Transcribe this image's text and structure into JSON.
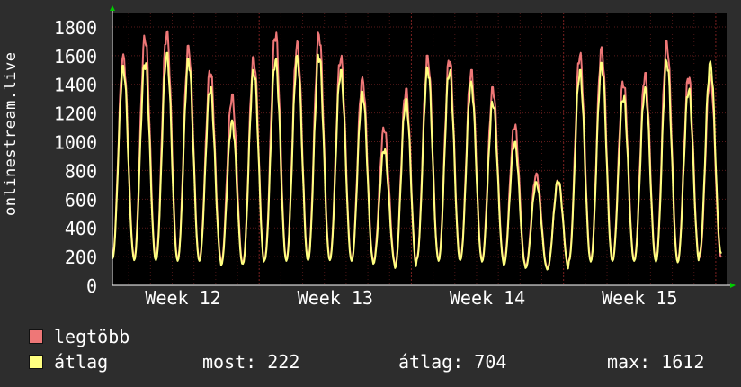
{
  "chart_data": {
    "type": "line",
    "ylabel": "onlinestream.live",
    "yticks": [
      0,
      200,
      400,
      600,
      800,
      1000,
      1200,
      1400,
      1600,
      1800
    ],
    "ylim": [
      0,
      1900
    ],
    "xlabels": [
      "Week 12",
      "Week 13",
      "Week 14",
      "Week 15"
    ],
    "days": 28,
    "grid": true,
    "series": [
      {
        "name": "legtöbb",
        "color": "#ee7777",
        "daily_peak": [
          1610,
          1740,
          1770,
          1670,
          1500,
          1330,
          1590,
          1760,
          1700,
          1760,
          1600,
          1450,
          1100,
          1370,
          1600,
          1580,
          1500,
          1380,
          1120,
          780,
          730,
          1620,
          1660,
          1420,
          1480,
          1700,
          1460,
          1470
        ],
        "daily_min": [
          200,
          185,
          190,
          180,
          185,
          150,
          160,
          185,
          180,
          185,
          185,
          180,
          160,
          130,
          190,
          180,
          185,
          175,
          150,
          130,
          120,
          180,
          175,
          180,
          180,
          175,
          170,
          195
        ]
      },
      {
        "name": "átlag",
        "color": "#ffff80",
        "daily_peak": [
          1530,
          1560,
          1620,
          1580,
          1380,
          1150,
          1500,
          1580,
          1600,
          1610,
          1500,
          1350,
          950,
          1300,
          1520,
          1500,
          1420,
          1280,
          1000,
          720,
          730,
          1500,
          1550,
          1320,
          1380,
          1570,
          1370,
          1560
        ],
        "daily_min": [
          185,
          175,
          175,
          170,
          170,
          140,
          150,
          175,
          170,
          175,
          175,
          170,
          150,
          120,
          180,
          170,
          175,
          165,
          140,
          120,
          110,
          170,
          165,
          170,
          170,
          165,
          160,
          222
        ]
      }
    ]
  },
  "stats": {
    "now": "most: 222",
    "avg": "átlag: 704",
    "max": "max: 1612"
  }
}
